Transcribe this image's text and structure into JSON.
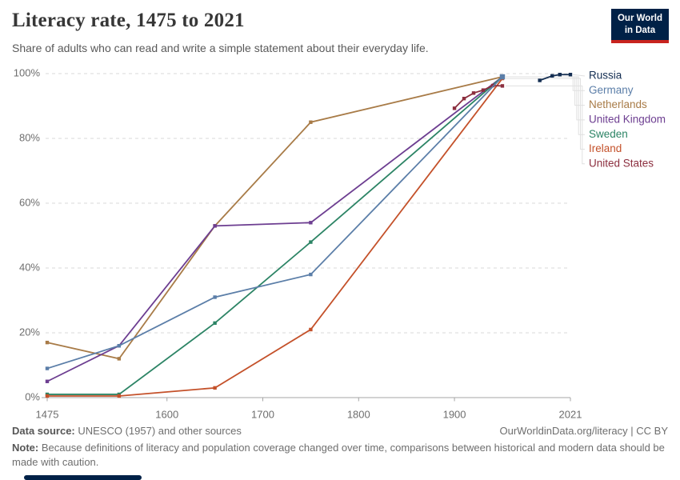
{
  "header": {
    "title": "Literacy rate, 1475 to 2021",
    "subtitle": "Share of adults who can read and write a simple statement about their everyday life.",
    "logo": {
      "line1": "Our World",
      "line2": "in Data",
      "bg": "#002147",
      "accent": "#c8241e"
    }
  },
  "chart_data": {
    "type": "line",
    "title": "Literacy rate, 1475 to 2021",
    "xlabel": "",
    "ylabel": "",
    "xlim": [
      1475,
      2021
    ],
    "ylim": [
      0,
      100
    ],
    "x_ticks": [
      1475,
      1600,
      1700,
      1800,
      1900,
      2021
    ],
    "y_ticks": [
      {
        "value": 0,
        "label": "0%"
      },
      {
        "value": 20,
        "label": "20%"
      },
      {
        "value": 40,
        "label": "40%"
      },
      {
        "value": 60,
        "label": "60%"
      },
      {
        "value": 80,
        "label": "80%"
      },
      {
        "value": 100,
        "label": "100%"
      }
    ],
    "grid": "horizontal-dashed",
    "legend_position": "right",
    "series": [
      {
        "name": "Russia",
        "color": "#142e52",
        "points": [
          [
            1989,
            97.9
          ],
          [
            2002,
            99.3
          ],
          [
            2010,
            99.7
          ],
          [
            2021,
            99.7
          ]
        ]
      },
      {
        "name": "Germany",
        "color": "#5b7ea8",
        "points": [
          [
            1475,
            9
          ],
          [
            1550,
            16
          ],
          [
            1650,
            31
          ],
          [
            1750,
            38
          ],
          [
            1950,
            99
          ]
        ]
      },
      {
        "name": "Netherlands",
        "color": "#a87b47",
        "points": [
          [
            1475,
            17
          ],
          [
            1550,
            12
          ],
          [
            1650,
            53
          ],
          [
            1750,
            85
          ],
          [
            1950,
            99
          ]
        ]
      },
      {
        "name": "United Kingdom",
        "color": "#6d3e91",
        "points": [
          [
            1475,
            5
          ],
          [
            1550,
            16
          ],
          [
            1650,
            53
          ],
          [
            1750,
            54
          ],
          [
            1950,
            99
          ]
        ]
      },
      {
        "name": "Sweden",
        "color": "#2c8465",
        "points": [
          [
            1475,
            1
          ],
          [
            1550,
            1
          ],
          [
            1650,
            23
          ],
          [
            1750,
            48
          ],
          [
            1950,
            99
          ]
        ]
      },
      {
        "name": "Ireland",
        "color": "#c4512a",
        "points": [
          [
            1475,
            0.5
          ],
          [
            1550,
            0.5
          ],
          [
            1650,
            3
          ],
          [
            1750,
            21
          ],
          [
            1950,
            98.5
          ]
        ]
      },
      {
        "name": "United States",
        "color": "#8c2f3f",
        "points": [
          [
            1900,
            89.3
          ],
          [
            1910,
            92.3
          ],
          [
            1920,
            94
          ],
          [
            1930,
            94.9
          ],
          [
            1940,
            96.3
          ],
          [
            1950,
            96.2
          ]
        ]
      }
    ]
  },
  "footer": {
    "source_label": "Data source:",
    "source_text": " UNESCO (1957) and other sources",
    "credit": "OurWorldinData.org/literacy | CC BY",
    "note_label": "Note:",
    "note_text": " Because definitions of literacy and population coverage changed over time, comparisons between historical and modern data should be made with caution."
  }
}
